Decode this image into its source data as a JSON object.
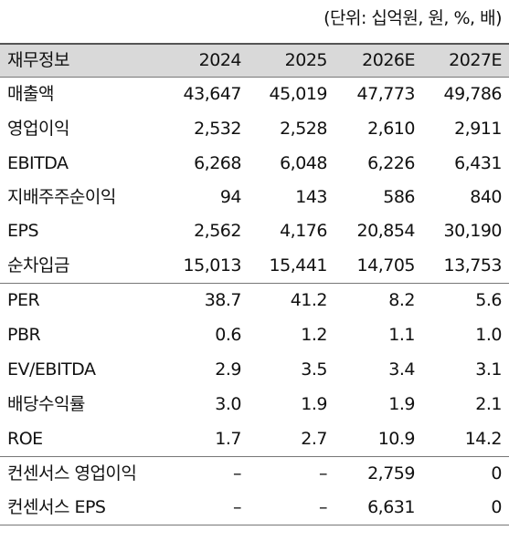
{
  "header": {
    "unit": "(단위: 십억원, 원, %, 배)"
  },
  "table": {
    "columns": [
      "재무정보",
      "2024",
      "2025",
      "2026E",
      "2027E"
    ],
    "rows": [
      [
        "매출액",
        "43,647",
        "45,019",
        "47,773",
        "49,786"
      ],
      [
        "영업이익",
        "2,532",
        "2,528",
        "2,610",
        "2,911"
      ],
      [
        "EBITDA",
        "6,268",
        "6,048",
        "6,226",
        "6,431"
      ],
      [
        "지배주주순이익",
        "94",
        "143",
        "586",
        "840"
      ],
      [
        "EPS",
        "2,562",
        "4,176",
        "20,854",
        "30,190"
      ],
      [
        "순차입금",
        "15,013",
        "15,441",
        "14,705",
        "13,753"
      ],
      [
        "PER",
        "38.7",
        "41.2",
        "8.2",
        "5.6"
      ],
      [
        "PBR",
        "0.6",
        "1.2",
        "1.1",
        "1.0"
      ],
      [
        "EV/EBITDA",
        "2.9",
        "3.5",
        "3.4",
        "3.1"
      ],
      [
        "배당수익률",
        "3.0",
        "1.9",
        "1.9",
        "2.1"
      ],
      [
        "ROE",
        "1.7",
        "2.7",
        "10.9",
        "14.2"
      ],
      [
        "컨센서스 영업이익",
        "–",
        "–",
        "2,759",
        "0"
      ],
      [
        "컨센서스 EPS",
        "–",
        "–",
        "6,631",
        "0"
      ]
    ]
  }
}
